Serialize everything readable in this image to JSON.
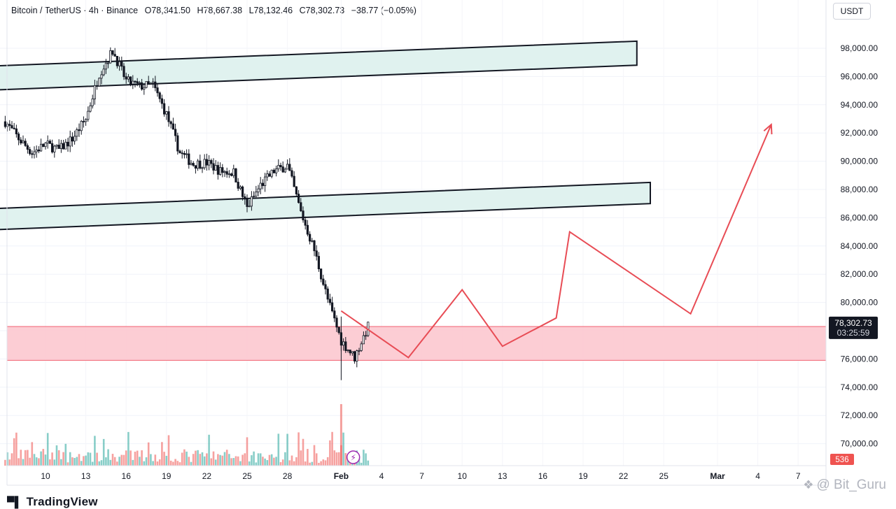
{
  "header": {
    "symbol": "Bitcoin / TetherUS · 4h · Binance",
    "open": "O78,341.50",
    "high": "H78,667.38",
    "low": "L78,132.46",
    "close": "C78,302.73",
    "change": "−38.77 (−0.05%)"
  },
  "currency_label": "USDT",
  "price_badge": {
    "price": "78,302.73",
    "countdown": "03:25:59"
  },
  "volume_badge": "536",
  "watermark": {
    "icon": "tradingview-logo-icon",
    "text": "TradingView"
  },
  "author_watermark": {
    "icon": "binance-square-icon",
    "text": "@ Bit_Guru"
  },
  "colors": {
    "up": "#26a69a",
    "down": "#ef5350",
    "zone_fill": "#e0f2ef",
    "support_fill": "#fcc8cf",
    "support_line": "#f06070",
    "projection": "#e84c55"
  },
  "chart_data": {
    "type": "candlestick",
    "title": "",
    "xlabel": "",
    "ylabel": "",
    "ylim": [
      69000,
      100000
    ],
    "y_ticks": [
      "70,000.00",
      "72,000.00",
      "74,000.00",
      "76,000.00",
      "78,000.00",
      "80,000.00",
      "82,000.00",
      "84,000.00",
      "86,000.00",
      "88,000.00",
      "90,000.00",
      "92,000.00",
      "94,000.00",
      "96,000.00",
      "98,000.00"
    ],
    "x_ticks": [
      "10",
      "13",
      "16",
      "19",
      "22",
      "25",
      "28",
      "Feb",
      "4",
      "7",
      "10",
      "13",
      "16",
      "19",
      "22",
      "25",
      "Mar",
      "4",
      "7"
    ],
    "price_path": [
      [
        "Jan 7",
        92800
      ],
      [
        "Jan 8",
        91600
      ],
      [
        "Jan 9",
        90600
      ],
      [
        "Jan 10",
        91200
      ],
      [
        "Jan 11",
        90800
      ],
      [
        "Jan 12",
        91600
      ],
      [
        "Jan 13",
        93000
      ],
      [
        "Jan 14",
        96200
      ],
      [
        "Jan 15",
        97800
      ],
      [
        "Jan 16",
        95700
      ],
      [
        "Jan 17",
        95300
      ],
      [
        "Jan 18",
        95400
      ],
      [
        "Jan 19",
        93300
      ],
      [
        "Jan 20",
        90600
      ],
      [
        "Jan 21",
        89800
      ],
      [
        "Jan 22",
        89900
      ],
      [
        "Jan 23",
        89300
      ],
      [
        "Jan 24",
        89200
      ],
      [
        "Jan 25",
        86700
      ],
      [
        "Jan 26",
        88300
      ],
      [
        "Jan 27",
        89300
      ],
      [
        "Jan 28",
        89700
      ],
      [
        "Jan 29",
        86400
      ],
      [
        "Jan 30",
        83700
      ],
      [
        "Jan 31",
        80200
      ],
      [
        "Feb 1",
        77300
      ],
      [
        "Feb 2",
        76100
      ],
      [
        "Feb 3",
        78302.73
      ]
    ],
    "resistance_zones": [
      {
        "start": [
          "Jan 6",
          96700
        ],
        "end": [
          "Feb 23",
          98500
        ],
        "height": 1700
      },
      {
        "start": [
          "Jan 6",
          86600
        ],
        "end": [
          "Feb 24",
          88500
        ],
        "height": 1500
      }
    ],
    "support_zone": [
      75900,
      78300
    ],
    "projection": [
      [
        "Feb 1",
        79400
      ],
      [
        "Feb 6",
        76100
      ],
      [
        "Feb 10",
        80900
      ],
      [
        "Feb 13",
        76900
      ],
      [
        "Feb 17",
        78900
      ],
      [
        "Feb 18",
        85000
      ],
      [
        "Feb 27",
        79200
      ],
      [
        "Mar 5",
        92600
      ]
    ],
    "volume_ref": 536
  }
}
